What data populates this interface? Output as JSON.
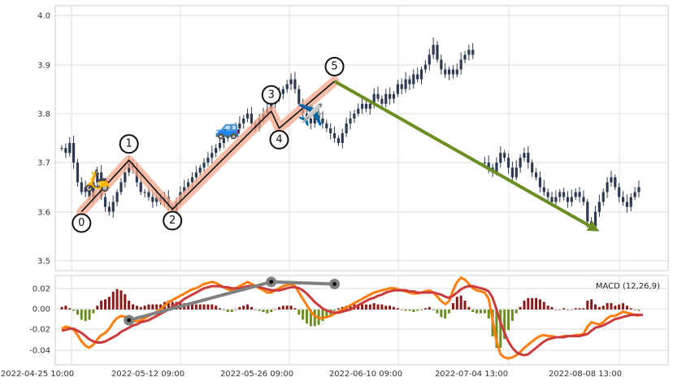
{
  "chart_data": [
    {
      "type": "candlestick",
      "panel": "price",
      "title": "",
      "ylim": [
        3.48,
        4.02
      ],
      "y_ticks": [
        "4.0",
        "3.9",
        "3.8",
        "3.7",
        "3.6",
        "3.5"
      ],
      "grid": true,
      "candle_color": "#2d3a52",
      "close_series": [
        3.73,
        3.72,
        3.74,
        3.7,
        3.66,
        3.64,
        3.65,
        3.63,
        3.66,
        3.68,
        3.63,
        3.61,
        3.6,
        3.62,
        3.64,
        3.66,
        3.68,
        3.7,
        3.69,
        3.66,
        3.64,
        3.64,
        3.63,
        3.62,
        3.63,
        3.62,
        3.63,
        3.61,
        3.6,
        3.62,
        3.64,
        3.65,
        3.66,
        3.67,
        3.68,
        3.69,
        3.7,
        3.71,
        3.72,
        3.73,
        3.74,
        3.75,
        3.76,
        3.76,
        3.77,
        3.78,
        3.79,
        3.8,
        3.78,
        3.77,
        3.79,
        3.8,
        3.81,
        3.82,
        3.83,
        3.84,
        3.85,
        3.86,
        3.87,
        3.85,
        3.82,
        3.8,
        3.79,
        3.78,
        3.8,
        3.79,
        3.78,
        3.77,
        3.76,
        3.75,
        3.74,
        3.76,
        3.78,
        3.79,
        3.8,
        3.81,
        3.82,
        3.81,
        3.82,
        3.84,
        3.83,
        3.82,
        3.84,
        3.83,
        3.84,
        3.86,
        3.85,
        3.87,
        3.86,
        3.88,
        3.87,
        3.89,
        3.9,
        3.92,
        3.94,
        3.91,
        3.89,
        3.88,
        3.89,
        3.88,
        3.89,
        3.91,
        3.92,
        3.93,
        3.92,
        null,
        null,
        3.7,
        3.69,
        3.68,
        3.7,
        3.72,
        3.71,
        3.69,
        3.67,
        3.69,
        3.71,
        3.72,
        3.7,
        3.68,
        3.67,
        3.65,
        3.64,
        3.63,
        3.62,
        3.63,
        3.64,
        3.63,
        3.62,
        3.63,
        3.64,
        3.63,
        3.62,
        3.58,
        3.57,
        3.6,
        3.62,
        3.64,
        3.66,
        3.67,
        3.65,
        3.63,
        3.62,
        3.61,
        3.63,
        3.64,
        3.65
      ],
      "annotations": {
        "points": [
          {
            "label": "0",
            "value": 3.6
          },
          {
            "label": "1",
            "value": 3.705
          },
          {
            "label": "2",
            "value": 3.605
          },
          {
            "label": "3",
            "value": 3.805
          },
          {
            "label": "4",
            "value": 3.77
          },
          {
            "label": "5",
            "value": 3.866
          }
        ],
        "arrow": {
          "from_value": 3.866,
          "to_value": 3.56,
          "color": "#6b8e23"
        },
        "emojis": [
          {
            "glyph": "🛵",
            "name": "scooter-icon"
          },
          {
            "glyph": "🚙",
            "name": "car-icon"
          },
          {
            "glyph": "✈️",
            "name": "airplane-icon"
          }
        ],
        "zigzag_color": "#111111",
        "zigzag_highlight_color": "#f4a58a"
      }
    },
    {
      "type": "line",
      "panel": "macd",
      "label": "MACD (12,26,9)",
      "ylim": [
        -0.052,
        0.032
      ],
      "y_ticks": [
        "0.02",
        "0.00",
        "-0.02",
        "-0.04"
      ],
      "x_ticks": [
        "2022-04-25 10:00",
        "2022-05-12 09:00",
        "2022-05-26 09:00",
        "2022-06-10 09:00",
        "2022-07-04 13:00",
        "2022-08-08 13:00"
      ],
      "series": [
        {
          "role": "macd",
          "color": "#ff7f0e",
          "values": [
            -0.018,
            -0.016,
            -0.017,
            -0.019,
            -0.024,
            -0.03,
            -0.034,
            -0.036,
            -0.033,
            -0.028,
            -0.024,
            -0.022,
            -0.018,
            -0.012,
            -0.008,
            -0.006,
            -0.007,
            -0.01,
            -0.011,
            -0.011,
            -0.01,
            -0.008,
            -0.006,
            -0.004,
            -0.002,
            0.0,
            0.004,
            0.007,
            0.009,
            0.011,
            0.013,
            0.015,
            0.017,
            0.019,
            0.02,
            0.022,
            0.024,
            0.025,
            0.026,
            0.025,
            0.023,
            0.021,
            0.019,
            0.018,
            0.02,
            0.022,
            0.024,
            0.026,
            0.024,
            0.022,
            0.02,
            0.018,
            0.016,
            0.016,
            0.018,
            0.02,
            0.022,
            0.023,
            0.024,
            0.022,
            0.016,
            0.01,
            0.004,
            -0.002,
            -0.006,
            -0.008,
            -0.008,
            -0.007,
            -0.006,
            -0.004,
            -0.002,
            0.0,
            0.002,
            0.004,
            0.006,
            0.008,
            0.01,
            0.012,
            0.014,
            0.016,
            0.017,
            0.018,
            0.019,
            0.02,
            0.02,
            0.019,
            0.018,
            0.017,
            0.016,
            0.015,
            0.015,
            0.016,
            0.017,
            0.018,
            0.016,
            0.012,
            0.008,
            0.005,
            0.008,
            0.018,
            0.026,
            0.03,
            0.028,
            0.024,
            0.02,
            0.018,
            0.017,
            0.016,
            0.01,
            -0.01,
            -0.03,
            -0.042,
            -0.045,
            -0.046,
            -0.045,
            -0.043,
            -0.04,
            -0.036,
            -0.033,
            -0.03,
            -0.027,
            -0.025,
            -0.024,
            -0.025,
            -0.025,
            -0.026,
            -0.026,
            -0.025,
            -0.025,
            -0.025,
            -0.024,
            -0.024,
            -0.023,
            -0.016,
            -0.012,
            -0.013,
            -0.014,
            -0.012,
            -0.008,
            -0.006,
            -0.006,
            -0.004,
            -0.002,
            -0.003,
            -0.004,
            -0.005,
            -0.006
          ]
        },
        {
          "role": "signal",
          "color": "#cc3b3b",
          "values": [
            -0.02,
            -0.019,
            -0.018,
            -0.018,
            -0.02,
            -0.022,
            -0.025,
            -0.028,
            -0.03,
            -0.031,
            -0.031,
            -0.03,
            -0.028,
            -0.026,
            -0.024,
            -0.021,
            -0.019,
            -0.017,
            -0.015,
            -0.014,
            -0.012,
            -0.011,
            -0.01,
            -0.008,
            -0.006,
            -0.004,
            -0.002,
            0.0,
            0.003,
            0.005,
            0.007,
            0.01,
            0.012,
            0.014,
            0.016,
            0.018,
            0.02,
            0.021,
            0.022,
            0.022,
            0.022,
            0.021,
            0.021,
            0.02,
            0.02,
            0.02,
            0.021,
            0.022,
            0.022,
            0.022,
            0.021,
            0.02,
            0.019,
            0.018,
            0.018,
            0.018,
            0.019,
            0.02,
            0.021,
            0.021,
            0.02,
            0.018,
            0.015,
            0.011,
            0.007,
            0.004,
            0.001,
            -0.001,
            -0.002,
            -0.003,
            -0.003,
            -0.002,
            -0.001,
            0.0,
            0.002,
            0.004,
            0.006,
            0.008,
            0.01,
            0.011,
            0.013,
            0.014,
            0.016,
            0.017,
            0.018,
            0.018,
            0.018,
            0.018,
            0.017,
            0.017,
            0.016,
            0.016,
            0.016,
            0.016,
            0.016,
            0.015,
            0.014,
            0.012,
            0.011,
            0.013,
            0.016,
            0.019,
            0.021,
            0.022,
            0.022,
            0.021,
            0.02,
            0.019,
            0.017,
            0.011,
            0.0,
            -0.012,
            -0.022,
            -0.03,
            -0.036,
            -0.04,
            -0.042,
            -0.043,
            -0.042,
            -0.039,
            -0.036,
            -0.033,
            -0.03,
            -0.028,
            -0.027,
            -0.026,
            -0.026,
            -0.026,
            -0.025,
            -0.025,
            -0.025,
            -0.025,
            -0.024,
            -0.023,
            -0.02,
            -0.017,
            -0.016,
            -0.015,
            -0.013,
            -0.011,
            -0.009,
            -0.008,
            -0.007,
            -0.006,
            -0.005,
            -0.005,
            -0.005,
            -0.005
          ]
        }
      ],
      "histogram": {
        "positive_color": "#8b1a1a",
        "negative_color": "#6b8e23"
      },
      "divergence_points": [
        {
          "value": -0.01
        },
        {
          "value": 0.026
        },
        {
          "value": 0.024
        }
      ],
      "divergence_color": "#808080"
    }
  ]
}
